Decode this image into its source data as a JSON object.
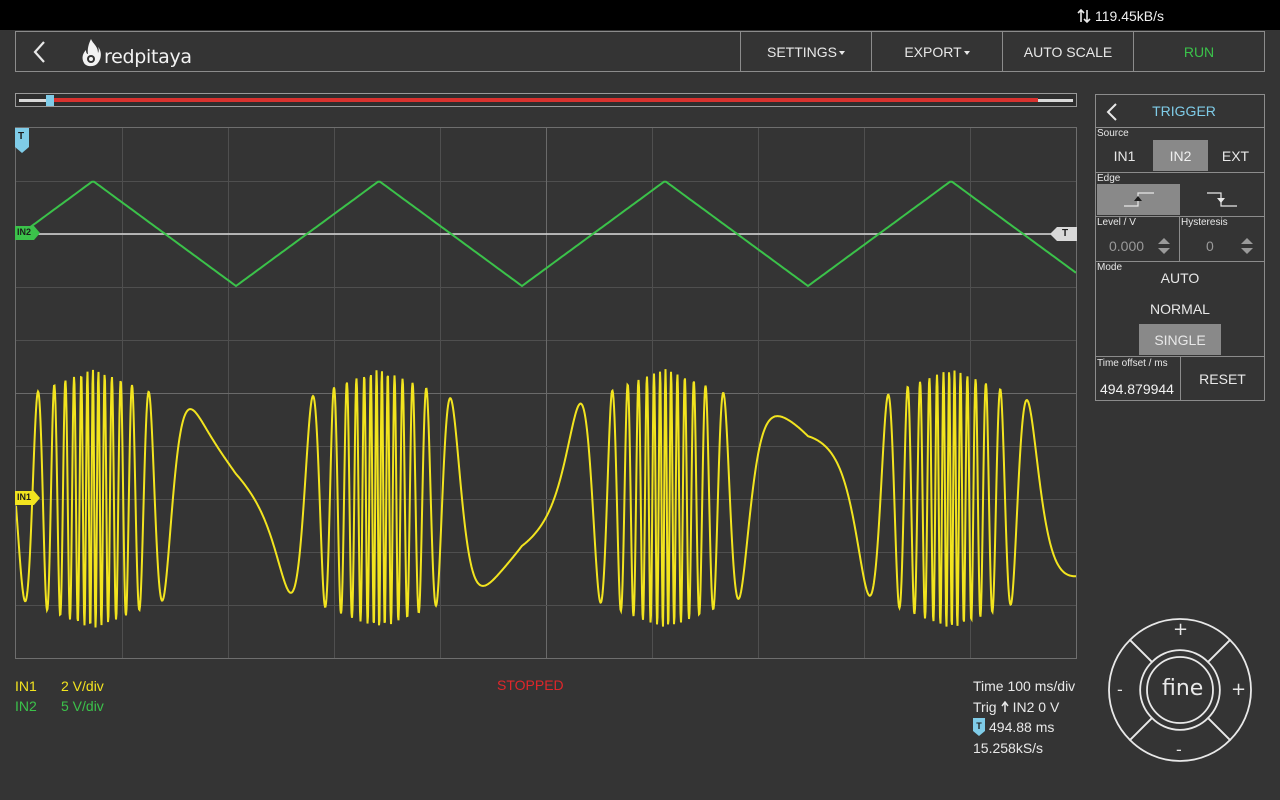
{
  "status_bar": {
    "data_rate": "119.45kB/s"
  },
  "header": {
    "logo_text": "redpitaya",
    "menu": {
      "settings": "SETTINGS",
      "export": "EXPORT",
      "auto_scale": "AUTO SCALE",
      "run": "RUN"
    }
  },
  "channels": {
    "in1": {
      "label": "IN1",
      "scale": "2 V/div",
      "color": "#f2e41f"
    },
    "in2": {
      "label": "IN2",
      "scale": "5 V/div",
      "color": "#3bc24a"
    }
  },
  "markers": {
    "trigger": "T",
    "in1": "IN1",
    "in2": "IN2"
  },
  "acquisition_state": "STOPPED",
  "time_info": {
    "timebase": "Time 100 ms/div",
    "trig_prefix": "Trig",
    "trig_suffix": "IN2 0 V",
    "offset": "494.88 ms",
    "sample_rate": "15.258kS/s"
  },
  "trigger_panel": {
    "title": "TRIGGER",
    "source_label": "Source",
    "sources": [
      "IN1",
      "IN2",
      "EXT"
    ],
    "selected_source": "IN2",
    "edge_label": "Edge",
    "selected_edge": "rising",
    "level_label": "Level / V",
    "level_value": "0.000",
    "hysteresis_label": "Hysteresis",
    "hysteresis_value": "0",
    "mode_label": "Mode",
    "modes": [
      "AUTO",
      "NORMAL",
      "SINGLE"
    ],
    "selected_mode": "SINGLE",
    "time_offset_label": "Time offset / ms",
    "time_offset_value": "494.879944",
    "reset_label": "RESET"
  },
  "jog_control": {
    "center": "fine",
    "plus": "+",
    "minus": "-"
  },
  "colors": {
    "accent": "#7fcce8",
    "stopped": "#e0262a",
    "run": "#3bc24a"
  }
}
